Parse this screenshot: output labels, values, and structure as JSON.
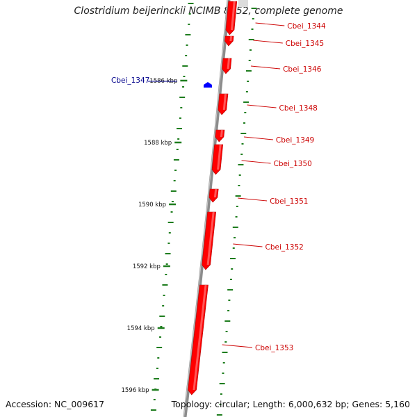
{
  "title": "Clostridium beijerinckii NCIMB 8052, complete genome",
  "accession_text": "Accession: NC_009617",
  "summary_text": "Topology: circular; Length: 6,000,632 bp; Genes: 5,160",
  "colors": {
    "forward_gene": "#ff0000",
    "reverse_gene": "#0000ff",
    "backbone": "#8c8c8c",
    "ticks": "#1e7d1e",
    "forward_label": "#cc0000",
    "reverse_label": "#00008b"
  },
  "kbp_markers": [
    {
      "label": "1586 kbp"
    },
    {
      "label": "1588 kbp"
    },
    {
      "label": "1590 kbp"
    },
    {
      "label": "1592 kbp"
    },
    {
      "label": "1594 kbp"
    },
    {
      "label": "1596 kbp"
    }
  ],
  "genes": [
    {
      "name": "Cbei_1344",
      "strand": "forward"
    },
    {
      "name": "Cbei_1345",
      "strand": "forward"
    },
    {
      "name": "Cbei_1346",
      "strand": "forward"
    },
    {
      "name": "Cbei_1347",
      "strand": "reverse"
    },
    {
      "name": "Cbei_1348",
      "strand": "forward"
    },
    {
      "name": "Cbei_1349",
      "strand": "forward"
    },
    {
      "name": "Cbei_1350",
      "strand": "forward"
    },
    {
      "name": "Cbei_1351",
      "strand": "forward"
    },
    {
      "name": "Cbei_1352",
      "strand": "forward"
    },
    {
      "name": "Cbei_1353",
      "strand": "forward"
    }
  ]
}
